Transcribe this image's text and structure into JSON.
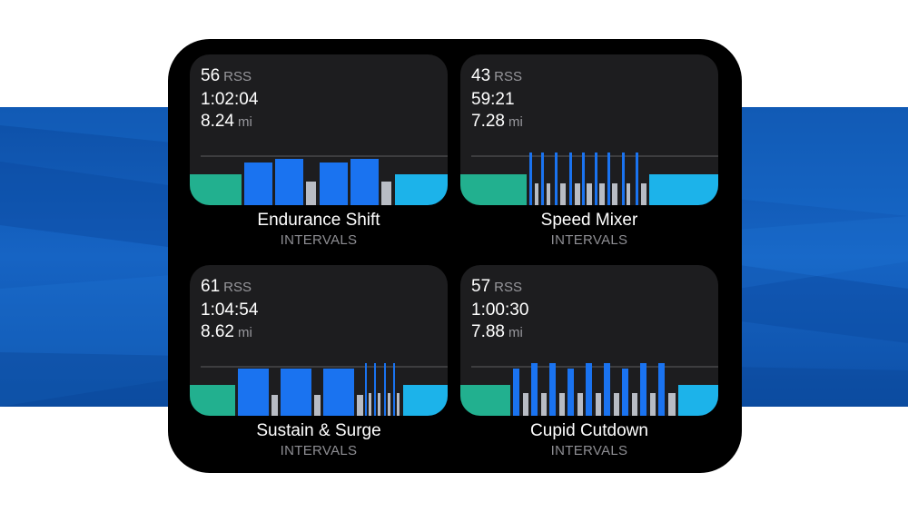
{
  "workouts": [
    {
      "rss_value": "56",
      "rss_unit": "RSS",
      "duration": "1:02:04",
      "distance_value": "8.24",
      "distance_unit": "mi",
      "name": "Endurance Shift",
      "type": "INTERVALS"
    },
    {
      "rss_value": "43",
      "rss_unit": "RSS",
      "duration": "59:21",
      "distance_value": "7.28",
      "distance_unit": "mi",
      "name": "Speed Mixer",
      "type": "INTERVALS"
    },
    {
      "rss_value": "61",
      "rss_unit": "RSS",
      "duration": "1:04:54",
      "distance_value": "8.62",
      "distance_unit": "mi",
      "name": "Sustain & Surge",
      "type": "INTERVALS"
    },
    {
      "rss_value": "57",
      "rss_unit": "RSS",
      "duration": "1:00:30",
      "distance_value": "7.88",
      "distance_unit": "mi",
      "name": "Cupid Cutdown",
      "type": "INTERVALS"
    }
  ],
  "colors": {
    "warmup": "#22b08f",
    "work": "#1a73f0",
    "recovery": "#b8bcc4",
    "cooldown": "#1cb3ea",
    "card": "#1d1d1f",
    "reference_line": "#48484a",
    "band": "#1664c4"
  }
}
